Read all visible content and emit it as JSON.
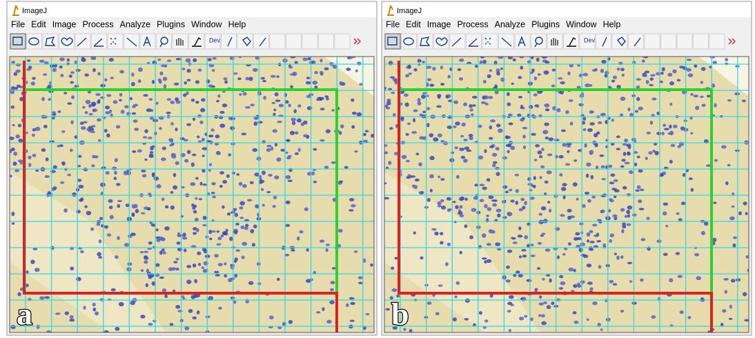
{
  "panels": [
    {
      "window_title": "ImageJ",
      "menu": [
        "File",
        "Edit",
        "Image",
        "Process",
        "Analyze",
        "Plugins",
        "Window",
        "Help"
      ],
      "toolbar_dev": "Dev",
      "label": "a"
    },
    {
      "window_title": "ImageJ",
      "menu": [
        "File",
        "Edit",
        "Image",
        "Process",
        "Analyze",
        "Plugins",
        "Window",
        "Help"
      ],
      "toolbar_dev": "Dev",
      "label": "b"
    }
  ]
}
